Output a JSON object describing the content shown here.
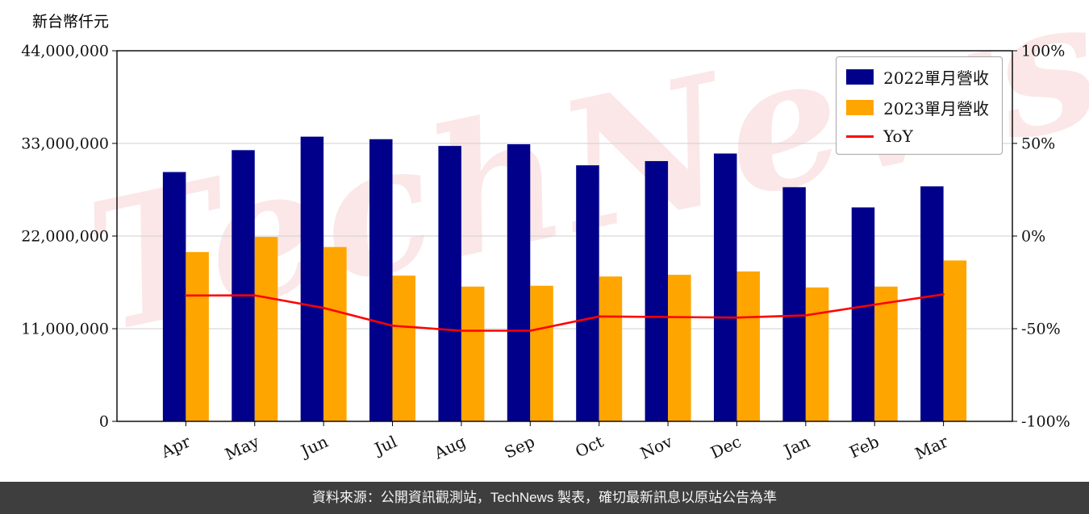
{
  "watermark": {
    "text": "TechNews"
  },
  "footer": {
    "text": "資料來源：公開資訊觀測站，TechNews 製表，確切最新訊息以原站公告為準"
  },
  "legend": [
    {
      "label": "2022單月營收",
      "color": "#00008B"
    },
    {
      "label": "2023單月營收",
      "color": "#FFA500"
    },
    {
      "label": "YoY",
      "color": "#FF0000"
    }
  ],
  "chart_data": {
    "type": "bar",
    "title": "",
    "categories": [
      "Apr",
      "May",
      "Jun",
      "Jul",
      "Aug",
      "Sep",
      "Oct",
      "Nov",
      "Dec",
      "Jan",
      "Feb",
      "Mar"
    ],
    "series": [
      {
        "name": "2022單月營收",
        "type": "bar",
        "axis": "left",
        "color": "#00008B",
        "values": [
          29600000,
          32200000,
          33800000,
          33500000,
          32700000,
          32900000,
          30400000,
          30900000,
          31800000,
          27800000,
          25400000,
          27900000
        ]
      },
      {
        "name": "2023單月營收",
        "type": "bar",
        "axis": "left",
        "color": "#FFA500",
        "values": [
          20100000,
          21900000,
          20700000,
          17300000,
          16000000,
          16100000,
          17200000,
          17400000,
          17800000,
          15900000,
          16000000,
          19100000
        ]
      },
      {
        "name": "YoY",
        "type": "line",
        "axis": "right",
        "color": "#FF0000",
        "values": [
          -32.1,
          -32.0,
          -38.8,
          -48.4,
          -51.1,
          -51.1,
          -43.4,
          -43.7,
          -44.0,
          -42.8,
          -37.0,
          -31.5
        ]
      }
    ],
    "left_axis": {
      "label": "新台幣仟元",
      "min": 0,
      "max": 44000000,
      "ticks": [
        "44,000,000",
        "33,000,000",
        "22,000,000",
        "11,000,000",
        "0"
      ]
    },
    "right_axis": {
      "min": -100,
      "max": 100,
      "ticks": [
        "100%",
        "50%",
        "0%",
        "-50%",
        "-100%"
      ]
    },
    "grid": true,
    "legend_position": "top-right"
  }
}
